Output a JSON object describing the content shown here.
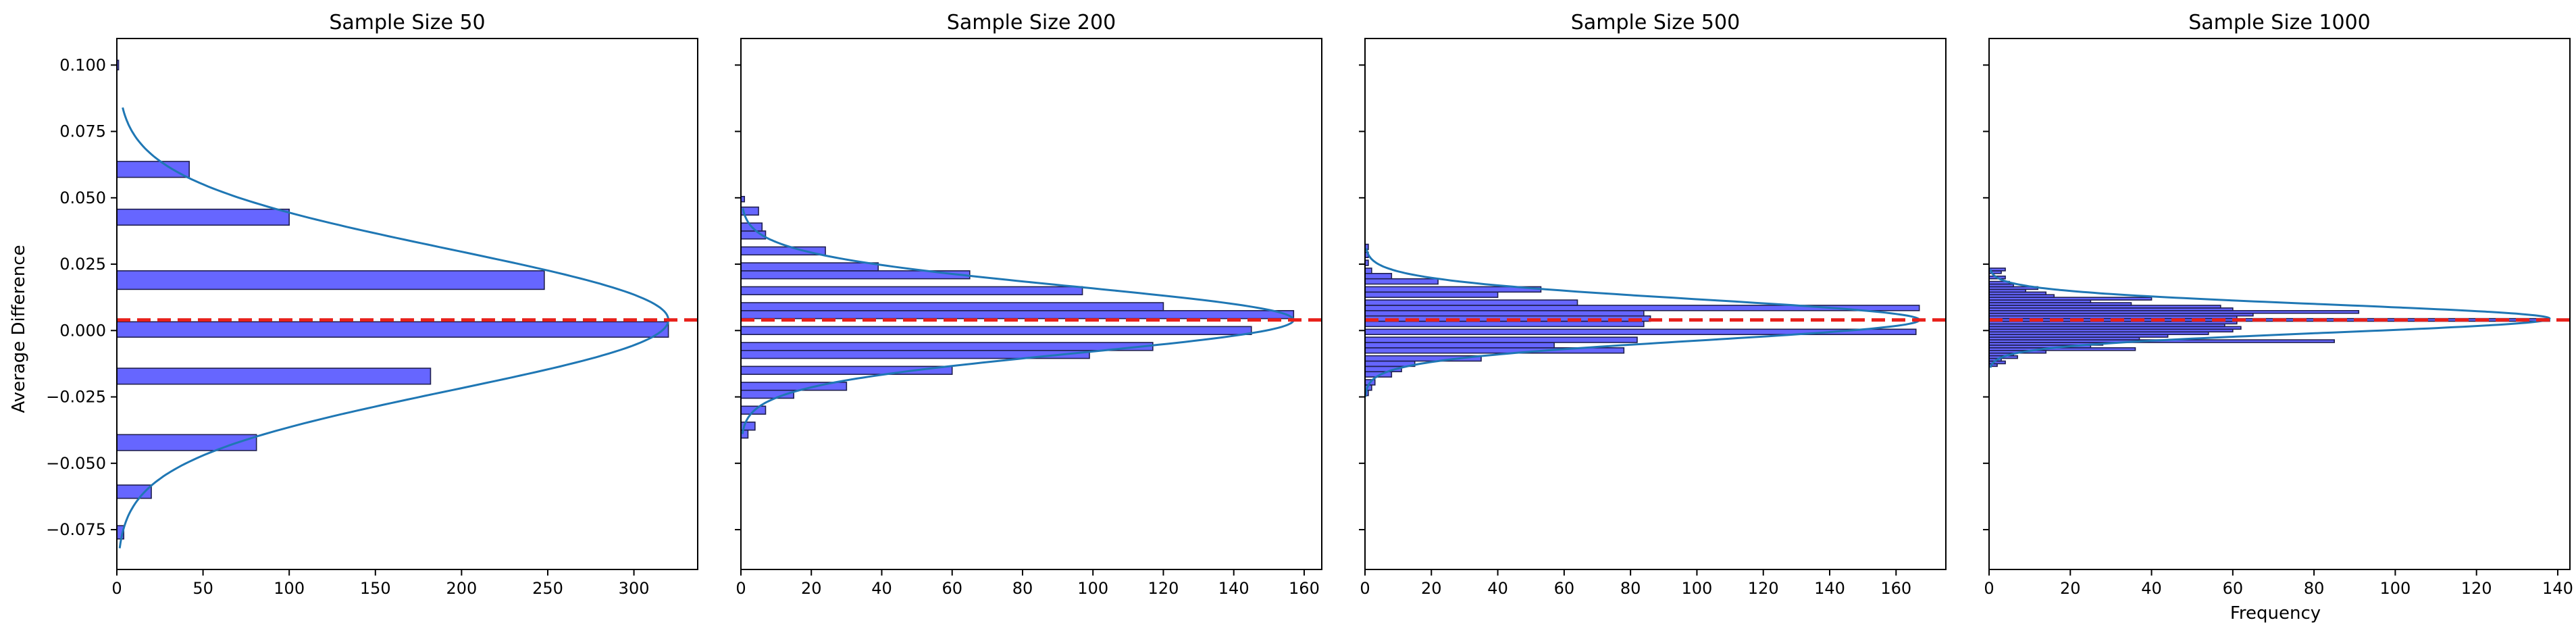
{
  "chart_data": {
    "type": "bar",
    "orientation": "horizontal",
    "shared_ylabel": "Average Difference",
    "shared_xlabel": "Frequency",
    "ylim": [
      -0.09,
      0.11
    ],
    "yticks": [
      -0.075,
      -0.05,
      -0.025,
      0.0,
      0.025,
      0.05,
      0.075,
      0.1
    ],
    "ytick_labels": [
      "−0.075",
      "−0.050",
      "−0.025",
      "0.000",
      "0.025",
      "0.050",
      "0.075",
      "0.100"
    ],
    "reference_line": {
      "y": 0.004,
      "color": "#e8211b",
      "style": "dashed"
    },
    "bar_color": "#6666ff",
    "bar_edge_color": "#1f1f4f",
    "curve_color": "#1f77b4",
    "panels": [
      {
        "title": "Sample Size 50",
        "xlim": [
          0,
          337
        ],
        "xticks": [
          0,
          50,
          100,
          150,
          200,
          250,
          300
        ],
        "bins": [
          {
            "y0": -0.0785,
            "y1": -0.0735,
            "count": 4
          },
          {
            "y0": -0.0632,
            "y1": -0.0582,
            "count": 20
          },
          {
            "y0": -0.0452,
            "y1": -0.0392,
            "count": 81
          },
          {
            "y0": -0.0202,
            "y1": -0.0142,
            "count": 182
          },
          {
            "y0": -0.0025,
            "y1": 0.0033,
            "count": 320
          },
          {
            "y0": 0.0155,
            "y1": 0.0225,
            "count": 248
          },
          {
            "y0": 0.0397,
            "y1": 0.0457,
            "count": 100
          },
          {
            "y0": 0.0577,
            "y1": 0.0637,
            "count": 42
          },
          {
            "y0": 0.0982,
            "y1": 0.1018,
            "count": 1
          }
        ],
        "curve": {
          "mean": 0.004,
          "sd": 0.0265,
          "peak": 320,
          "y_from": -0.082,
          "y_to": 0.084
        }
      },
      {
        "title": "Sample Size 200",
        "xlim": [
          0,
          165
        ],
        "xticks": [
          0,
          20,
          40,
          60,
          80,
          100,
          120,
          140,
          160
        ],
        "bins": [
          {
            "y0": -0.0405,
            "y1": -0.0375,
            "count": 2
          },
          {
            "y0": -0.0375,
            "y1": -0.0345,
            "count": 4
          },
          {
            "y0": -0.0315,
            "y1": -0.0285,
            "count": 7
          },
          {
            "y0": -0.0255,
            "y1": -0.0225,
            "count": 15
          },
          {
            "y0": -0.0225,
            "y1": -0.0195,
            "count": 30
          },
          {
            "y0": -0.0165,
            "y1": -0.0135,
            "count": 60
          },
          {
            "y0": -0.0105,
            "y1": -0.0075,
            "count": 99
          },
          {
            "y0": -0.0075,
            "y1": -0.0045,
            "count": 117
          },
          {
            "y0": -0.0015,
            "y1": 0.0015,
            "count": 145
          },
          {
            "y0": 0.0045,
            "y1": 0.0075,
            "count": 157
          },
          {
            "y0": 0.0075,
            "y1": 0.0105,
            "count": 120
          },
          {
            "y0": 0.0135,
            "y1": 0.0165,
            "count": 97
          },
          {
            "y0": 0.0195,
            "y1": 0.0225,
            "count": 65
          },
          {
            "y0": 0.0225,
            "y1": 0.0255,
            "count": 39
          },
          {
            "y0": 0.0285,
            "y1": 0.0315,
            "count": 24
          },
          {
            "y0": 0.0345,
            "y1": 0.0375,
            "count": 7
          },
          {
            "y0": 0.0375,
            "y1": 0.0405,
            "count": 6
          },
          {
            "y0": 0.0435,
            "y1": 0.0465,
            "count": 5
          },
          {
            "y0": 0.0485,
            "y1": 0.0505,
            "count": 1
          }
        ],
        "curve": {
          "mean": 0.004,
          "sd": 0.0125,
          "peak": 157,
          "y_from": -0.039,
          "y_to": 0.046
        }
      },
      {
        "title": "Sample Size 500",
        "xlim": [
          0,
          175
        ],
        "xticks": [
          0,
          20,
          40,
          60,
          80,
          100,
          120,
          140,
          160
        ],
        "bins": [
          {
            "y0": -0.0245,
            "y1": -0.0225,
            "count": 1
          },
          {
            "y0": -0.0225,
            "y1": -0.0205,
            "count": 2
          },
          {
            "y0": -0.0205,
            "y1": -0.0185,
            "count": 3
          },
          {
            "y0": -0.0175,
            "y1": -0.0155,
            "count": 8
          },
          {
            "y0": -0.0155,
            "y1": -0.0135,
            "count": 11
          },
          {
            "y0": -0.0135,
            "y1": -0.0115,
            "count": 15
          },
          {
            "y0": -0.0115,
            "y1": -0.0095,
            "count": 35
          },
          {
            "y0": -0.0085,
            "y1": -0.0065,
            "count": 78
          },
          {
            "y0": -0.0065,
            "y1": -0.0045,
            "count": 57
          },
          {
            "y0": -0.0045,
            "y1": -0.0025,
            "count": 82
          },
          {
            "y0": -0.0015,
            "y1": 0.0005,
            "count": 166
          },
          {
            "y0": 0.0015,
            "y1": 0.0035,
            "count": 84
          },
          {
            "y0": 0.0035,
            "y1": 0.0055,
            "count": 86
          },
          {
            "y0": 0.0055,
            "y1": 0.0075,
            "count": 84
          },
          {
            "y0": 0.0075,
            "y1": 0.0095,
            "count": 167
          },
          {
            "y0": 0.0095,
            "y1": 0.0115,
            "count": 64
          },
          {
            "y0": 0.0125,
            "y1": 0.0145,
            "count": 40
          },
          {
            "y0": 0.0145,
            "y1": 0.0165,
            "count": 53
          },
          {
            "y0": 0.0175,
            "y1": 0.0195,
            "count": 22
          },
          {
            "y0": 0.0195,
            "y1": 0.0215,
            "count": 8
          },
          {
            "y0": 0.0215,
            "y1": 0.0235,
            "count": 2
          },
          {
            "y0": 0.0245,
            "y1": 0.0265,
            "count": 1
          },
          {
            "y0": 0.0275,
            "y1": 0.0295,
            "count": 1
          },
          {
            "y0": 0.0305,
            "y1": 0.0325,
            "count": 1
          }
        ],
        "curve": {
          "mean": 0.004,
          "sd": 0.0077,
          "peak": 167,
          "y_from": -0.025,
          "y_to": 0.031
        }
      },
      {
        "title": "Sample Size 1000",
        "xlim": [
          0,
          143
        ],
        "xticks": [
          0,
          20,
          40,
          60,
          80,
          100,
          120,
          140
        ],
        "bins": [
          {
            "y0": -0.0135,
            "y1": -0.0125,
            "count": 2
          },
          {
            "y0": -0.0125,
            "y1": -0.0115,
            "count": 4
          },
          {
            "y0": -0.0115,
            "y1": -0.0105,
            "count": 3
          },
          {
            "y0": -0.0105,
            "y1": -0.0095,
            "count": 7
          },
          {
            "y0": -0.0095,
            "y1": -0.0085,
            "count": 6
          },
          {
            "y0": -0.0085,
            "y1": -0.0075,
            "count": 14
          },
          {
            "y0": -0.0075,
            "y1": -0.0065,
            "count": 36
          },
          {
            "y0": -0.0065,
            "y1": -0.0055,
            "count": 25
          },
          {
            "y0": -0.0055,
            "y1": -0.0045,
            "count": 28
          },
          {
            "y0": -0.0045,
            "y1": -0.0035,
            "count": 85
          },
          {
            "y0": -0.0035,
            "y1": -0.0025,
            "count": 37
          },
          {
            "y0": -0.0025,
            "y1": -0.0015,
            "count": 44
          },
          {
            "y0": -0.0015,
            "y1": -0.0005,
            "count": 54
          },
          {
            "y0": -0.0005,
            "y1": 0.0005,
            "count": 60
          },
          {
            "y0": 0.0005,
            "y1": 0.0015,
            "count": 62
          },
          {
            "y0": 0.0015,
            "y1": 0.0025,
            "count": 58
          },
          {
            "y0": 0.0025,
            "y1": 0.0035,
            "count": 61
          },
          {
            "y0": 0.0035,
            "y1": 0.0045,
            "count": 138
          },
          {
            "y0": 0.0045,
            "y1": 0.0055,
            "count": 61
          },
          {
            "y0": 0.0055,
            "y1": 0.0065,
            "count": 65
          },
          {
            "y0": 0.0065,
            "y1": 0.0075,
            "count": 91
          },
          {
            "y0": 0.0075,
            "y1": 0.0085,
            "count": 60
          },
          {
            "y0": 0.0085,
            "y1": 0.0095,
            "count": 57
          },
          {
            "y0": 0.0095,
            "y1": 0.0105,
            "count": 35
          },
          {
            "y0": 0.0105,
            "y1": 0.0115,
            "count": 25
          },
          {
            "y0": 0.0115,
            "y1": 0.0125,
            "count": 40
          },
          {
            "y0": 0.0125,
            "y1": 0.0135,
            "count": 16
          },
          {
            "y0": 0.0135,
            "y1": 0.0145,
            "count": 14
          },
          {
            "y0": 0.0145,
            "y1": 0.0155,
            "count": 9
          },
          {
            "y0": 0.0155,
            "y1": 0.0165,
            "count": 12
          },
          {
            "y0": 0.0165,
            "y1": 0.0175,
            "count": 6
          },
          {
            "y0": 0.0175,
            "y1": 0.0185,
            "count": 5
          },
          {
            "y0": 0.0195,
            "y1": 0.0205,
            "count": 4
          },
          {
            "y0": 0.0215,
            "y1": 0.0225,
            "count": 3
          },
          {
            "y0": 0.0225,
            "y1": 0.0235,
            "count": 4
          }
        ],
        "curve": {
          "mean": 0.0045,
          "sd": 0.0053,
          "peak": 138,
          "y_from": -0.014,
          "y_to": 0.023
        }
      }
    ]
  }
}
